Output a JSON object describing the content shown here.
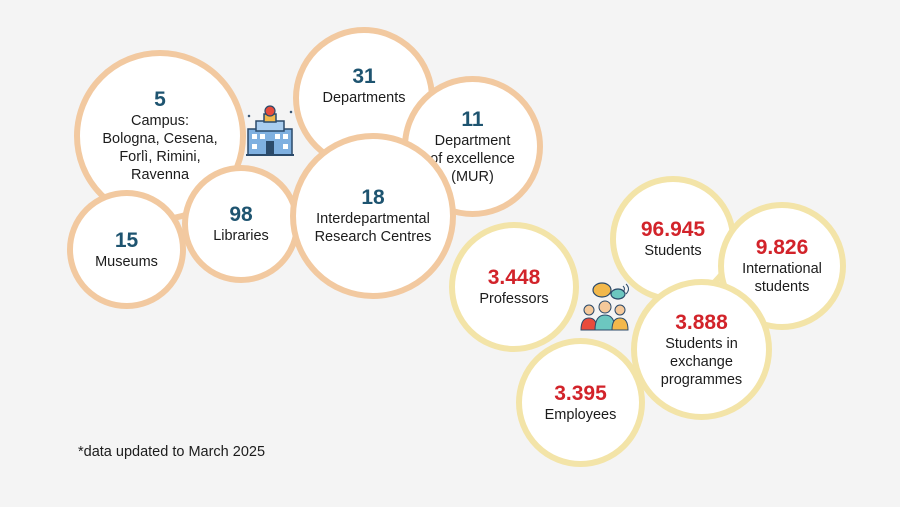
{
  "palette": {
    "university_border": "#f2c9a0",
    "people_border": "#f3e4a8",
    "university_number": "#1e5470",
    "people_number": "#d2232a",
    "background": "#f4f4f4"
  },
  "university_stats": [
    {
      "id": "campus",
      "value": "5",
      "label": "Campus:\nBologna, Cesena,\nForlì, Rimini,\nRavenna"
    },
    {
      "id": "departments",
      "value": "31",
      "label": "Departments"
    },
    {
      "id": "excellence",
      "value": "11",
      "label": "Department\nof excellence\n(MUR)"
    },
    {
      "id": "museums",
      "value": "15",
      "label": "Museums"
    },
    {
      "id": "libraries",
      "value": "98",
      "label": "Libraries"
    },
    {
      "id": "research_centres",
      "value": "18",
      "label": "Interdepartmental\nResearch Centres"
    }
  ],
  "people_stats": [
    {
      "id": "students",
      "value": "96.945",
      "label": "Students"
    },
    {
      "id": "international",
      "value": "9.826",
      "label": "International\nstudents"
    },
    {
      "id": "professors",
      "value": "3.448",
      "label": "Professors"
    },
    {
      "id": "exchange",
      "value": "3.888",
      "label": "Students in\nexchange\nprogrammes"
    },
    {
      "id": "employees",
      "value": "3.395",
      "label": "Employees"
    }
  ],
  "icons": [
    "university-building-icon",
    "people-group-icon"
  ],
  "footnote": "*data updated to March 2025"
}
